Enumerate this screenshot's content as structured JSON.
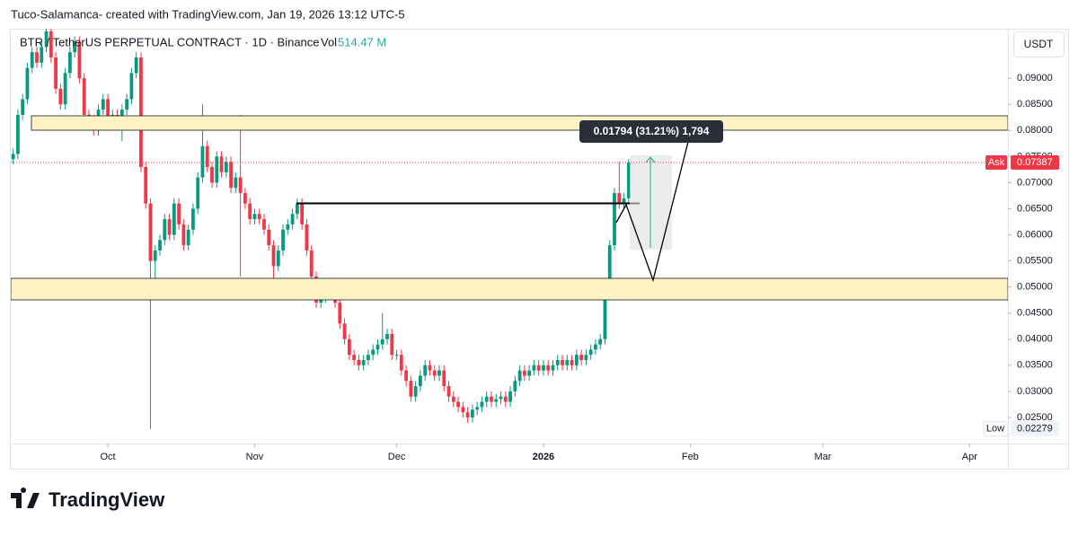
{
  "chart_data": {
    "type": "candlestick",
    "title": "Tuco-Salamanca- created with TradingView.com, Jan 19, 2026 13:12 UTC-5",
    "symbol": "BTR / TetherUS PERPETUAL CONTRACT · 1D · Binance",
    "volume_caption": "Vol",
    "volume": "514.47 M",
    "currency": "USDT",
    "brand": "TradingView",
    "measurement": "0.01794 (31.21%) 1,794",
    "up_color": "#089981",
    "down_color": "#f23645",
    "grid": false,
    "ask": {
      "label": "Ask",
      "value": 0.07387
    },
    "low_marker": {
      "label": "Low",
      "value": 0.02279
    },
    "xlim": [
      -20.5,
      190.1
    ],
    "xticks": [
      {
        "value": 0,
        "label": "Oct"
      },
      {
        "value": 31,
        "label": "Nov"
      },
      {
        "value": 61,
        "label": "Dec"
      },
      {
        "value": 92,
        "label": "2026"
      },
      {
        "value": 123,
        "label": "Feb"
      },
      {
        "value": 151,
        "label": "Mar"
      },
      {
        "value": 182,
        "label": "Apr"
      }
    ],
    "ylim": [
      0.02,
      0.0995
    ],
    "yticks": [
      {
        "value": 0.025,
        "label": "0.02500"
      },
      {
        "value": 0.03,
        "label": "0.03000"
      },
      {
        "value": 0.035,
        "label": "0.03500"
      },
      {
        "value": 0.04,
        "label": "0.04000"
      },
      {
        "value": 0.045,
        "label": "0.04500"
      },
      {
        "value": 0.05,
        "label": "0.05000"
      },
      {
        "value": 0.055,
        "label": "0.05500"
      },
      {
        "value": 0.06,
        "label": "0.06000"
      },
      {
        "value": 0.065,
        "label": "0.06500"
      },
      {
        "value": 0.07,
        "label": "0.07000"
      },
      {
        "value": 0.075,
        "label": "0.07500"
      },
      {
        "value": 0.08,
        "label": "0.08000"
      },
      {
        "value": 0.085,
        "label": "0.08500"
      },
      {
        "value": 0.09,
        "label": "0.09000"
      }
    ],
    "x": [
      -20,
      -19,
      -18,
      -17,
      -16,
      -15,
      -14,
      -13,
      -12,
      -11,
      -10,
      -9,
      -8,
      -7,
      -6,
      -5,
      -4,
      -3,
      -2,
      -1,
      0,
      1,
      2,
      3,
      4,
      5,
      6,
      7,
      8,
      9,
      10,
      11,
      12,
      13,
      14,
      15,
      16,
      17,
      18,
      19,
      20,
      21,
      22,
      23,
      24,
      25,
      26,
      27,
      28,
      29,
      30,
      31,
      32,
      33,
      34,
      35,
      36,
      37,
      38,
      39,
      40,
      41,
      42,
      43,
      44,
      45,
      46,
      47,
      48,
      49,
      50,
      51,
      52,
      53,
      54,
      55,
      56,
      57,
      58,
      59,
      60,
      61,
      62,
      63,
      64,
      65,
      66,
      67,
      68,
      69,
      70,
      71,
      72,
      73,
      74,
      75,
      76,
      77,
      78,
      79,
      80,
      81,
      82,
      83,
      84,
      85,
      86,
      87,
      88,
      89,
      90,
      91,
      92,
      93,
      94,
      95,
      96,
      97,
      98,
      99,
      100,
      101,
      102,
      103,
      104,
      105,
      106,
      107,
      108,
      109,
      110
    ],
    "open": [
      0.0745,
      0.0755,
      0.083,
      0.086,
      0.092,
      0.095,
      0.093,
      0.096,
      0.099,
      0.094,
      0.088,
      0.085,
      0.091,
      0.095,
      0.097,
      0.09,
      0.083,
      0.082,
      0.08,
      0.084,
      0.086,
      0.081,
      0.083,
      0.081,
      0.084,
      0.086,
      0.091,
      0.094,
      0.073,
      0.066,
      0.055,
      0.057,
      0.059,
      0.063,
      0.06,
      0.066,
      0.062,
      0.058,
      0.061,
      0.065,
      0.071,
      0.077,
      0.073,
      0.07,
      0.075,
      0.072,
      0.074,
      0.069,
      0.071,
      0.068,
      0.066,
      0.063,
      0.064,
      0.063,
      0.061,
      0.058,
      0.054,
      0.057,
      0.061,
      0.062,
      0.064,
      0.066,
      0.062,
      0.057,
      0.052,
      0.047,
      0.048,
      0.049,
      0.05,
      0.047,
      0.043,
      0.04,
      0.037,
      0.036,
      0.035,
      0.036,
      0.037,
      0.038,
      0.039,
      0.04,
      0.041,
      0.037,
      0.037,
      0.034,
      0.032,
      0.029,
      0.031,
      0.033,
      0.035,
      0.034,
      0.033,
      0.034,
      0.031,
      0.029,
      0.028,
      0.027,
      0.026,
      0.025,
      0.0265,
      0.027,
      0.028,
      0.029,
      0.028,
      0.0285,
      0.029,
      0.028,
      0.03,
      0.032,
      0.034,
      0.033,
      0.034,
      0.035,
      0.034,
      0.035,
      0.034,
      0.035,
      0.036,
      0.035,
      0.036,
      0.035,
      0.037,
      0.036,
      0.037,
      0.038,
      0.039,
      0.04,
      0.049,
      0.058,
      0.068,
      0.066,
      0.067
    ],
    "high": [
      0.0765,
      0.084,
      0.087,
      0.093,
      0.096,
      0.096,
      0.097,
      0.1,
      0.1,
      0.095,
      0.089,
      0.092,
      0.096,
      0.098,
      0.098,
      0.091,
      0.084,
      0.083,
      0.085,
      0.087,
      0.087,
      0.084,
      0.084,
      0.085,
      0.087,
      0.092,
      0.095,
      0.095,
      0.074,
      0.067,
      0.058,
      0.06,
      0.064,
      0.064,
      0.067,
      0.067,
      0.063,
      0.062,
      0.066,
      0.072,
      0.085,
      0.078,
      0.074,
      0.076,
      0.076,
      0.075,
      0.075,
      0.072,
      0.083,
      0.069,
      0.067,
      0.065,
      0.065,
      0.064,
      0.062,
      0.059,
      0.058,
      0.062,
      0.063,
      0.065,
      0.067,
      0.067,
      0.063,
      0.058,
      0.053,
      0.049,
      0.05,
      0.051,
      0.051,
      0.048,
      0.044,
      0.041,
      0.038,
      0.037,
      0.037,
      0.038,
      0.039,
      0.04,
      0.045,
      0.042,
      0.042,
      0.038,
      0.038,
      0.035,
      0.033,
      0.032,
      0.034,
      0.036,
      0.036,
      0.035,
      0.035,
      0.035,
      0.032,
      0.03,
      0.029,
      0.028,
      0.027,
      0.0275,
      0.028,
      0.029,
      0.03,
      0.03,
      0.0295,
      0.03,
      0.03,
      0.031,
      0.033,
      0.035,
      0.035,
      0.035,
      0.036,
      0.036,
      0.036,
      0.036,
      0.036,
      0.037,
      0.037,
      0.037,
      0.037,
      0.038,
      0.038,
      0.038,
      0.039,
      0.04,
      0.041,
      0.05,
      0.059,
      0.069,
      0.074,
      0.068,
      0.0745
    ],
    "low": [
      0.0735,
      0.0745,
      0.082,
      0.085,
      0.091,
      0.092,
      0.092,
      0.095,
      0.093,
      0.087,
      0.084,
      0.084,
      0.09,
      0.094,
      0.089,
      0.082,
      0.08,
      0.079,
      0.079,
      0.083,
      0.08,
      0.08,
      0.08,
      0.078,
      0.083,
      0.085,
      0.09,
      0.072,
      0.065,
      0.02279,
      0.051,
      0.056,
      0.058,
      0.059,
      0.059,
      0.061,
      0.057,
      0.057,
      0.06,
      0.064,
      0.07,
      0.072,
      0.069,
      0.069,
      0.071,
      0.071,
      0.068,
      0.068,
      0.052,
      0.065,
      0.062,
      0.062,
      0.062,
      0.06,
      0.057,
      0.05,
      0.053,
      0.056,
      0.06,
      0.061,
      0.063,
      0.061,
      0.056,
      0.051,
      0.046,
      0.046,
      0.047,
      0.048,
      0.046,
      0.042,
      0.039,
      0.036,
      0.035,
      0.034,
      0.034,
      0.035,
      0.036,
      0.037,
      0.038,
      0.039,
      0.036,
      0.036,
      0.033,
      0.031,
      0.028,
      0.028,
      0.03,
      0.032,
      0.033,
      0.032,
      0.032,
      0.03,
      0.028,
      0.027,
      0.026,
      0.025,
      0.024,
      0.024,
      0.0255,
      0.026,
      0.027,
      0.027,
      0.027,
      0.0275,
      0.027,
      0.027,
      0.029,
      0.031,
      0.032,
      0.032,
      0.033,
      0.033,
      0.033,
      0.033,
      0.033,
      0.034,
      0.034,
      0.034,
      0.034,
      0.034,
      0.035,
      0.035,
      0.036,
      0.037,
      0.038,
      0.039,
      0.048,
      0.057,
      0.065,
      0.065,
      0.066
    ],
    "close": [
      0.0755,
      0.083,
      0.086,
      0.092,
      0.095,
      0.093,
      0.096,
      0.099,
      0.094,
      0.088,
      0.085,
      0.091,
      0.095,
      0.097,
      0.09,
      0.083,
      0.082,
      0.08,
      0.084,
      0.086,
      0.081,
      0.083,
      0.081,
      0.084,
      0.086,
      0.091,
      0.094,
      0.073,
      0.066,
      0.055,
      0.057,
      0.059,
      0.063,
      0.06,
      0.066,
      0.062,
      0.058,
      0.061,
      0.065,
      0.071,
      0.077,
      0.073,
      0.07,
      0.075,
      0.072,
      0.074,
      0.069,
      0.071,
      0.068,
      0.066,
      0.063,
      0.064,
      0.063,
      0.061,
      0.058,
      0.054,
      0.057,
      0.061,
      0.062,
      0.064,
      0.066,
      0.062,
      0.057,
      0.052,
      0.047,
      0.048,
      0.049,
      0.05,
      0.047,
      0.043,
      0.04,
      0.037,
      0.036,
      0.035,
      0.036,
      0.037,
      0.038,
      0.039,
      0.04,
      0.041,
      0.037,
      0.037,
      0.034,
      0.032,
      0.029,
      0.031,
      0.033,
      0.035,
      0.034,
      0.033,
      0.034,
      0.031,
      0.029,
      0.028,
      0.027,
      0.026,
      0.025,
      0.0265,
      0.027,
      0.028,
      0.029,
      0.028,
      0.0285,
      0.029,
      0.028,
      0.03,
      0.032,
      0.034,
      0.033,
      0.034,
      0.035,
      0.034,
      0.035,
      0.034,
      0.035,
      0.036,
      0.035,
      0.036,
      0.035,
      0.037,
      0.036,
      0.037,
      0.038,
      0.039,
      0.04,
      0.049,
      0.058,
      0.068,
      0.066,
      0.067,
      0.07387
    ]
  }
}
